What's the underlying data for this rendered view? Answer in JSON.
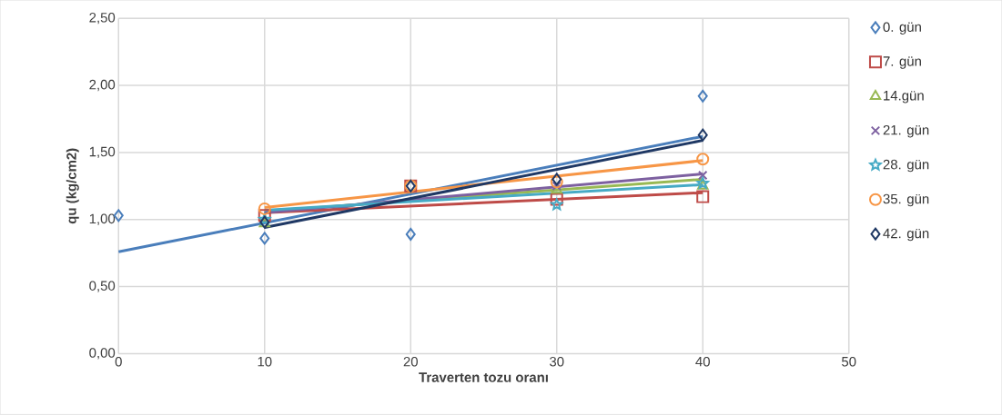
{
  "chart_data": {
    "type": "scatter",
    "xlabel": "Traverten tozu oranı",
    "ylabel": "qu (kg/cm2)",
    "xlim": [
      0,
      50
    ],
    "xticks": [
      0,
      10,
      20,
      30,
      40,
      50
    ],
    "ylim": [
      0,
      2.5
    ],
    "yticks": [
      {
        "value": 0,
        "label": "0,00"
      },
      {
        "value": 0.5,
        "label": "0,50"
      },
      {
        "value": 1,
        "label": "1,00"
      },
      {
        "value": 1.5,
        "label": "1,50"
      },
      {
        "value": 2,
        "label": "2,00"
      },
      {
        "value": 2.5,
        "label": "2,50"
      }
    ],
    "grid": true,
    "legend": "right",
    "series": [
      {
        "name": "0. gün",
        "color": "#4a7ebb",
        "marker": "diamond",
        "x": [
          0,
          10,
          20,
          40
        ],
        "values": [
          1.03,
          0.86,
          0.89,
          1.92
        ]
      },
      {
        "name": "7. gün",
        "color": "#be4b48",
        "marker": "square",
        "x": [
          10,
          20,
          30,
          40
        ],
        "values": [
          1.03,
          1.25,
          1.15,
          1.17
        ]
      },
      {
        "name": "14.gün",
        "color": "#98b954",
        "marker": "triangle",
        "x": [
          10,
          20,
          30,
          40
        ],
        "values": [
          0.97,
          null,
          1.22,
          1.25
        ]
      },
      {
        "name": "21. gün",
        "color": "#7d60a0",
        "marker": "cross",
        "x": [
          30,
          40
        ],
        "values": [
          1.25,
          1.33
        ]
      },
      {
        "name": "28. gün",
        "color": "#46aac5",
        "marker": "star",
        "x": [
          10,
          20,
          30,
          40
        ],
        "values": [
          1.0,
          null,
          1.11,
          1.27
        ]
      },
      {
        "name": "35. gün",
        "color": "#f79646",
        "marker": "circle",
        "x": [
          10,
          20,
          30,
          40
        ],
        "values": [
          1.08,
          1.25,
          1.28,
          1.45
        ]
      },
      {
        "name": "42. gün",
        "color": "#1f3864",
        "marker": "diamond",
        "x": [
          10,
          20,
          30,
          40
        ],
        "values": [
          0.98,
          1.25,
          1.3,
          1.63
        ]
      },
      {
        "type": "line",
        "color": "#4a7ebb",
        "marker": "none",
        "x": [
          0,
          40
        ],
        "values": [
          0.76,
          1.62
        ]
      },
      {
        "type": "line",
        "color": "#be4b48",
        "marker": "none",
        "x": [
          10,
          40
        ],
        "values": [
          1.05,
          1.2
        ]
      },
      {
        "type": "line",
        "color": "#98b954",
        "marker": "none",
        "x": [
          10,
          40
        ],
        "values": [
          1.06,
          1.3
        ]
      },
      {
        "type": "line",
        "color": "#7d60a0",
        "marker": "none",
        "x": [
          10,
          40
        ],
        "values": [
          1.05,
          1.34
        ]
      },
      {
        "type": "line",
        "color": "#46aac5",
        "marker": "none",
        "x": [
          10,
          40
        ],
        "values": [
          1.07,
          1.26
        ]
      },
      {
        "type": "line",
        "color": "#f79646",
        "marker": "none",
        "x": [
          10,
          40
        ],
        "values": [
          1.09,
          1.44
        ]
      },
      {
        "type": "line",
        "color": "#1f3864",
        "marker": "none",
        "x": [
          10,
          40
        ],
        "values": [
          0.94,
          1.59
        ]
      }
    ]
  }
}
